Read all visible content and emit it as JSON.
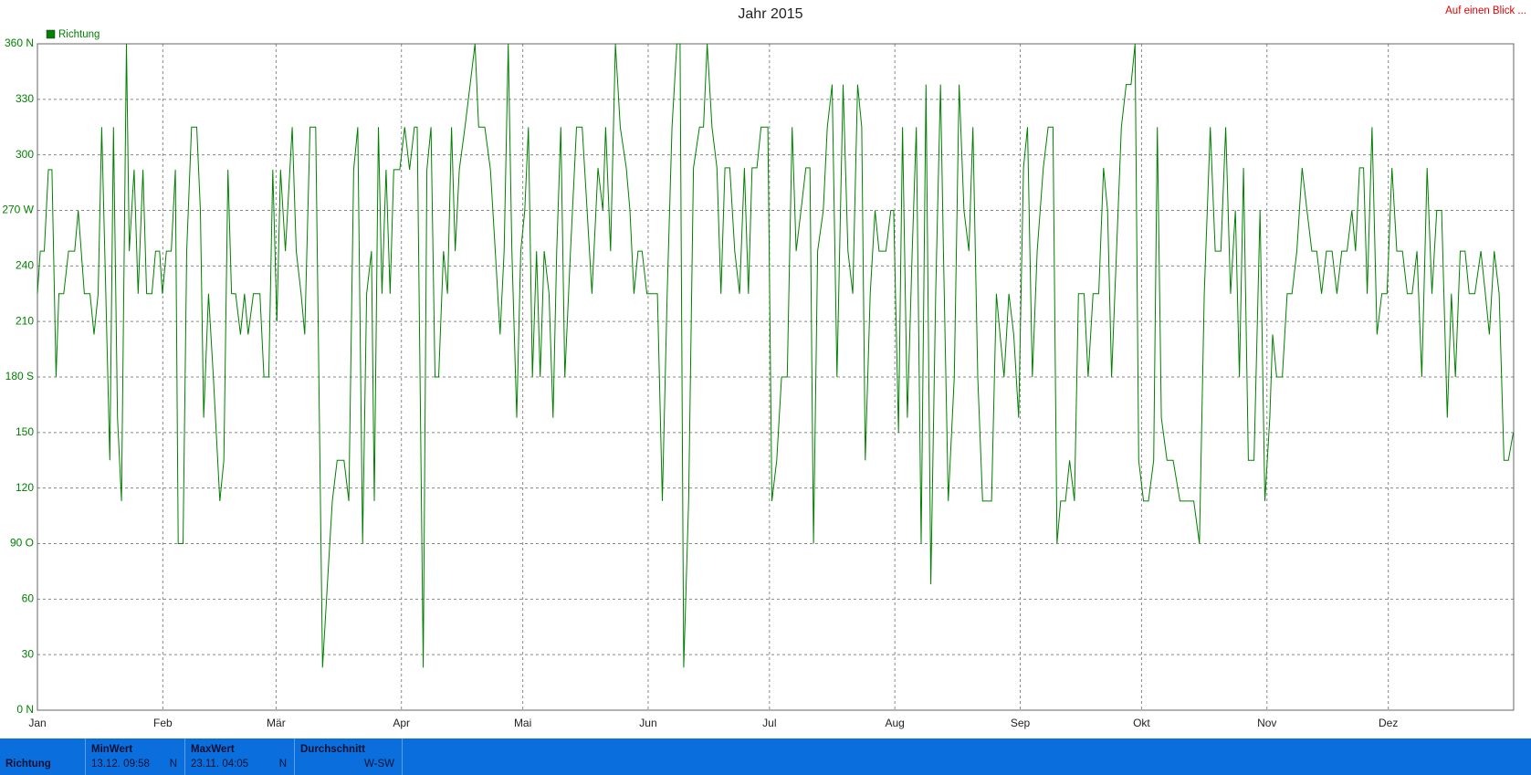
{
  "chart_data": {
    "type": "line",
    "title": "Jahr 2015",
    "link": "Auf einen Blick ...",
    "legend": "top-left",
    "grid": true,
    "xlim": [
      0,
      365
    ],
    "xticks": [
      {
        "value": 0,
        "label": "Jan"
      },
      {
        "value": 31,
        "label": "Feb"
      },
      {
        "value": 59,
        "label": "Mär"
      },
      {
        "value": 90,
        "label": "Apr"
      },
      {
        "value": 120,
        "label": "Mai"
      },
      {
        "value": 151,
        "label": "Jun"
      },
      {
        "value": 181,
        "label": "Jul"
      },
      {
        "value": 212,
        "label": "Aug"
      },
      {
        "value": 243,
        "label": "Sep"
      },
      {
        "value": 273,
        "label": "Okt"
      },
      {
        "value": 304,
        "label": "Nov"
      },
      {
        "value": 334,
        "label": "Dez"
      }
    ],
    "ylim": [
      0,
      360
    ],
    "yticks": [
      {
        "value": 0,
        "label": "0 N"
      },
      30,
      60,
      {
        "value": 90,
        "label": "90 O"
      },
      120,
      150,
      {
        "value": 180,
        "label": "180 S"
      },
      210,
      240,
      {
        "value": 270,
        "label": "270 W"
      },
      300,
      330,
      {
        "value": 360,
        "label": "360 N"
      }
    ],
    "series": [
      {
        "name": "Richtung",
        "color": "#008000",
        "x": [
          0,
          0.7,
          1.7,
          2.7,
          3.6,
          4.6,
          5.3,
          6.5,
          7.7,
          9.2,
          10.1,
          11.6,
          13.0,
          14.0,
          15.0,
          15.9,
          16.9,
          17.9,
          18.8,
          19.8,
          20.8,
          22.0,
          22.7,
          23.9,
          24.9,
          26.1,
          27.0,
          28.3,
          29.2,
          30.2,
          30.9,
          31.9,
          33.1,
          34.1,
          34.8,
          36.0,
          36.9,
          38.1,
          39.4,
          40.3,
          41.1,
          42.3,
          43.5,
          45.1,
          46.1,
          47.1,
          48.0,
          49.0,
          50.2,
          51.2,
          52.1,
          53.4,
          55.0,
          56.0,
          57.2,
          58.2,
          59.2,
          60.1,
          61.3,
          63.0,
          64.0,
          65.2,
          66.1,
          67.4,
          68.8,
          70.5,
          71.7,
          72.9,
          74.1,
          75.8,
          77.0,
          78.2,
          79.2,
          80.4,
          81.4,
          82.6,
          83.3,
          84.3,
          85.2,
          86.2,
          87.2,
          88.1,
          89.6,
          90.8,
          92.0,
          93.2,
          93.9,
          94.6,
          95.4,
          96.3,
          97.3,
          98.3,
          99.2,
          100.4,
          101.4,
          102.4,
          103.3,
          104.3,
          105.7,
          107.0,
          108.2,
          109.1,
          110.6,
          112.0,
          113.2,
          114.4,
          115.4,
          116.4,
          117.3,
          118.5,
          119.5,
          120.5,
          121.4,
          122.4,
          123.4,
          124.3,
          125.3,
          126.5,
          127.5,
          128.4,
          129.4,
          130.4,
          131.8,
          133.3,
          134.7,
          135.9,
          137.1,
          138.6,
          139.8,
          140.5,
          141.7,
          142.9,
          144.1,
          145.6,
          146.5,
          147.5,
          148.5,
          149.5,
          150.7,
          151.6,
          153.3,
          154.5,
          155.7,
          156.9,
          158.1,
          158.9,
          159.8,
          161.0,
          162.2,
          163.7,
          164.7,
          165.6,
          166.8,
          168.0,
          169.0,
          170.0,
          171.2,
          172.4,
          173.6,
          174.8,
          175.8,
          176.7,
          177.9,
          178.9,
          180.6,
          181.6,
          182.8,
          184.0,
          185.4,
          186.6,
          187.6,
          188.8,
          190.0,
          191.0,
          191.9,
          192.9,
          194.3,
          195.3,
          196.5,
          197.7,
          199.2,
          200.4,
          201.6,
          202.8,
          203.8,
          204.7,
          205.9,
          207.1,
          208.1,
          209.8,
          211.0,
          211.7,
          212.9,
          213.9,
          215.1,
          216.3,
          217.3,
          218.5,
          219.7,
          220.9,
          222.1,
          223.3,
          224.0,
          225.2,
          226.7,
          227.9,
          229.1,
          230.3,
          231.3,
          232.5,
          233.7,
          234.7,
          235.9,
          237.1,
          238.0,
          239.0,
          240.2,
          241.4,
          242.6,
          243.8,
          244.8,
          246.0,
          247.2,
          248.7,
          249.9,
          251.1,
          252.1,
          253.0,
          254.2,
          255.2,
          256.4,
          257.4,
          258.8,
          259.8,
          261.0,
          262.4,
          263.6,
          264.6,
          265.6,
          266.8,
          268.0,
          269.2,
          270.4,
          271.4,
          272.3,
          273.5,
          274.7,
          276.0,
          276.9,
          277.9,
          279.3,
          280.8,
          282.5,
          284.2,
          285.9,
          287.3,
          288.5,
          290.0,
          291.2,
          292.6,
          293.8,
          295.0,
          296.2,
          297.2,
          298.2,
          299.4,
          300.8,
          302.3,
          303.5,
          304.7,
          305.4,
          306.4,
          307.8,
          309.0,
          310.2,
          311.4,
          312.7,
          313.9,
          315.1,
          316.3,
          317.5,
          318.7,
          320.1,
          321.3,
          322.5,
          323.8,
          325.0,
          325.9,
          326.9,
          327.9,
          328.8,
          330.0,
          331.2,
          332.4,
          333.7,
          334.9,
          336.1,
          337.5,
          338.7,
          339.9,
          341.1,
          342.3,
          343.6,
          344.8,
          346.0,
          347.2,
          348.6,
          349.6,
          350.6,
          351.8,
          353.0,
          354.0,
          355.4,
          356.9,
          358.0,
          359.0,
          360.2,
          361.4,
          362.6,
          363.7,
          364.9
        ],
        "values": [
          225,
          248,
          248,
          292,
          292,
          180,
          225,
          225,
          248,
          248,
          270,
          225,
          225,
          203,
          225,
          315,
          225,
          135,
          315,
          158,
          113,
          360,
          248,
          292,
          225,
          292,
          225,
          225,
          248,
          248,
          225,
          248,
          248,
          292,
          90,
          90,
          248,
          315,
          315,
          270,
          158,
          225,
          180,
          113,
          135,
          292,
          225,
          225,
          203,
          225,
          203,
          225,
          225,
          180,
          180,
          292,
          210,
          292,
          248,
          315,
          248,
          225,
          203,
          315,
          315,
          23,
          68,
          113,
          135,
          135,
          113,
          292,
          315,
          90,
          225,
          248,
          113,
          315,
          225,
          292,
          225,
          292,
          292,
          315,
          292,
          315,
          315,
          180,
          23,
          292,
          315,
          180,
          180,
          248,
          225,
          315,
          248,
          292,
          315,
          338,
          360,
          315,
          315,
          292,
          248,
          203,
          248,
          360,
          248,
          158,
          248,
          270,
          315,
          180,
          248,
          180,
          248,
          225,
          158,
          248,
          315,
          180,
          248,
          315,
          315,
          270,
          225,
          293,
          270,
          315,
          248,
          360,
          315,
          293,
          270,
          225,
          248,
          248,
          225,
          225,
          225,
          113,
          225,
          315,
          360,
          360,
          23,
          113,
          293,
          315,
          315,
          360,
          315,
          293,
          225,
          293,
          293,
          248,
          225,
          293,
          225,
          293,
          293,
          315,
          315,
          113,
          135,
          180,
          180,
          315,
          248,
          270,
          293,
          293,
          90,
          248,
          270,
          315,
          338,
          180,
          338,
          248,
          225,
          338,
          315,
          135,
          225,
          270,
          248,
          248,
          270,
          270,
          150,
          315,
          158,
          248,
          315,
          90,
          338,
          68,
          225,
          338,
          248,
          113,
          180,
          338,
          270,
          248,
          315,
          180,
          113,
          113,
          113,
          225,
          203,
          180,
          225,
          203,
          158,
          293,
          315,
          180,
          248,
          293,
          315,
          315,
          90,
          113,
          113,
          135,
          113,
          225,
          225,
          180,
          225,
          225,
          293,
          270,
          180,
          248,
          315,
          338,
          338,
          360,
          135,
          113,
          113,
          135,
          315,
          158,
          135,
          135,
          113,
          113,
          113,
          90,
          225,
          315,
          248,
          248,
          315,
          225,
          270,
          180,
          293,
          135,
          135,
          270,
          113,
          158,
          203,
          180,
          180,
          225,
          225,
          248,
          293,
          270,
          248,
          248,
          225,
          248,
          248,
          225,
          248,
          248,
          270,
          248,
          293,
          293,
          225,
          315,
          203,
          225,
          225,
          293,
          248,
          248,
          225,
          225,
          248,
          180,
          293,
          225,
          270,
          270,
          158,
          225,
          180,
          248,
          248,
          225,
          225,
          248,
          225,
          203,
          248,
          225,
          135,
          135,
          150
        ]
      }
    ]
  },
  "footer": {
    "label": "Richtung",
    "columns": [
      {
        "header": "MinWert",
        "time": "13.12. 09:58",
        "dir": "N"
      },
      {
        "header": "MaxWert",
        "time": "23.11. 04:05",
        "dir": "N"
      },
      {
        "header": "Durchschnitt",
        "dir": "W-SW"
      }
    ]
  }
}
